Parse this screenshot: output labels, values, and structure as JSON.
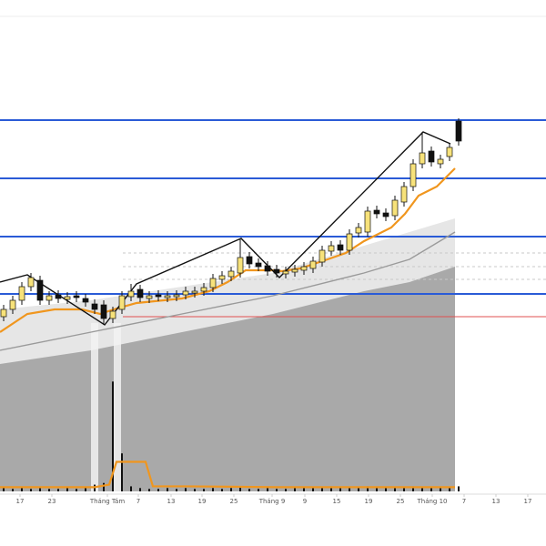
{
  "chart_data": {
    "type": "candlestick",
    "xlim": [
      -0.4,
      59.6
    ],
    "ylim": [
      0,
      540
    ],
    "xticks": [
      {
        "value": 1.8,
        "label": "17"
      },
      {
        "value": 5.3,
        "label": "23"
      },
      {
        "value": 11.4,
        "label": "Tháng Tám"
      },
      {
        "value": 14.8,
        "label": "7"
      },
      {
        "value": 18.4,
        "label": "13"
      },
      {
        "value": 21.8,
        "label": "19"
      },
      {
        "value": 25.3,
        "label": "25"
      },
      {
        "value": 29.5,
        "label": "Tháng 9"
      },
      {
        "value": 33.1,
        "label": "9"
      },
      {
        "value": 36.6,
        "label": "15"
      },
      {
        "value": 40.1,
        "label": "19"
      },
      {
        "value": 43.6,
        "label": "25"
      },
      {
        "value": 47.1,
        "label": "Tháng 10"
      },
      {
        "value": 50.6,
        "label": "7"
      },
      {
        "value": 54.1,
        "label": "13"
      },
      {
        "value": 57.6,
        "label": "17"
      }
    ],
    "x": [
      0,
      1,
      2,
      3,
      4,
      5,
      6,
      7,
      8,
      9,
      10,
      11,
      12,
      13,
      14,
      15,
      16,
      17,
      18,
      19,
      20,
      21,
      22,
      23,
      24,
      25,
      26,
      27,
      28,
      29,
      30,
      31,
      32,
      33,
      34,
      35,
      36,
      37,
      38,
      39,
      40,
      41,
      42,
      43,
      44,
      45,
      46,
      47,
      48,
      49,
      50
    ],
    "open": [
      192,
      200,
      210,
      225,
      232,
      210,
      216,
      211,
      215,
      212,
      206,
      205,
      190,
      200,
      214,
      222,
      212,
      216,
      213,
      214,
      216,
      218,
      220,
      224,
      233,
      236,
      240,
      258,
      251,
      248,
      244,
      239,
      241,
      243,
      245,
      252,
      264,
      271,
      265,
      284,
      285,
      309,
      306,
      303,
      318,
      335,
      360,
      374,
      360,
      368,
      407
    ],
    "high": [
      205,
      215,
      230,
      240,
      237,
      220,
      221,
      219,
      220,
      217,
      211,
      210,
      203,
      220,
      228,
      227,
      220,
      221,
      220,
      221,
      225,
      225,
      229,
      239,
      242,
      247,
      278,
      263,
      256,
      253,
      249,
      247,
      249,
      252,
      258,
      270,
      275,
      276,
      288,
      295,
      313,
      314,
      311,
      325,
      340,
      365,
      395,
      379,
      370,
      383,
      410
    ],
    "low": [
      187,
      195,
      205,
      220,
      205,
      205,
      207,
      206,
      208,
      203,
      195,
      183,
      185,
      195,
      209,
      208,
      207,
      209,
      208,
      209,
      211,
      213,
      215,
      219,
      228,
      231,
      235,
      245,
      242,
      237,
      235,
      234,
      236,
      238,
      240,
      247,
      259,
      260,
      260,
      279,
      280,
      300,
      297,
      298,
      313,
      330,
      355,
      357,
      355,
      363,
      380
    ],
    "close": [
      200,
      210,
      225,
      235,
      210,
      215,
      212,
      214,
      213,
      208,
      200,
      190,
      198,
      215,
      220,
      213,
      215,
      214,
      215,
      216,
      220,
      220,
      224,
      234,
      237,
      242,
      257,
      250,
      247,
      242,
      240,
      242,
      244,
      247,
      253,
      265,
      270,
      265,
      283,
      290,
      308,
      305,
      302,
      320,
      335,
      360,
      372,
      362,
      365,
      378,
      385
    ],
    "up_color": "#f7e27a",
    "down_color": "#111111",
    "areas": [
      {
        "color": "#e6e6e6",
        "x": [
          -0.4,
          9.6,
          19.6,
          29.6,
          39.6,
          44.6,
          49.6
        ],
        "values": [
          200,
          210,
          225,
          240,
          270,
          285,
          300
        ]
      },
      {
        "color": "#a9a9a9",
        "x": [
          -0.4,
          9.6,
          19.6,
          29.6,
          39.6,
          44.6,
          49.6
        ],
        "values": [
          140,
          155,
          175,
          195,
          220,
          230,
          247
        ]
      }
    ],
    "lines": [
      {
        "color": "#9a9a9a",
        "x": [
          -0.4,
          9.6,
          19.6,
          29.6,
          39.6,
          44.6,
          49.6
        ],
        "values": [
          155,
          175,
          195,
          215,
          240,
          255,
          285
        ]
      },
      {
        "color": "#f0961e",
        "x": [
          -0.4,
          2.6,
          5.6,
          8.6,
          10.6,
          12.1,
          14.6,
          19.6,
          22.6,
          24.6,
          26.6,
          29.6,
          30.6,
          32.6,
          35.6,
          37.6,
          39.6,
          42.6,
          44.1,
          45.6,
          47.6,
          49.6
        ],
        "values": [
          175,
          195,
          200,
          200,
          195,
          200,
          207,
          212,
          220,
          230,
          243,
          243,
          242,
          245,
          255,
          262,
          275,
          290,
          305,
          325,
          335,
          355
        ]
      },
      {
        "color": "#111111",
        "x": [
          -0.4,
          2.6,
          11.1,
          14.6,
          26.1,
          30.3,
          46.1,
          49.1
        ],
        "values": [
          230,
          238,
          183,
          228,
          278,
          235,
          395,
          382
        ]
      }
    ],
    "levels": [
      {
        "value": 408,
        "color": "#2a5bd7",
        "from": -0.4
      },
      {
        "value": 344,
        "color": "#2a5bd7",
        "from": -0.4
      },
      {
        "value": 280,
        "color": "#2a5bd7",
        "from": -0.4
      },
      {
        "value": 217,
        "color": "#2a5bd7",
        "from": -0.4
      },
      {
        "value": 192,
        "color": "#e05050",
        "from": 13.1
      },
      {
        "value": 262,
        "color": "#c8c8c8",
        "from": 13.1,
        "dashed": true
      },
      {
        "value": 247,
        "color": "#c8c8c8",
        "from": 13.1,
        "dashed": true
      },
      {
        "value": 233,
        "color": "#c8c8c8",
        "from": 13.1,
        "dashed": true
      }
    ],
    "highlights": [
      [
        9.6,
        10.4
      ],
      [
        12.1,
        12.9
      ]
    ],
    "highlight_top": 185,
    "volume": {
      "ylim": [
        0,
        140
      ],
      "color": "#111111",
      "values": [
        4,
        3,
        5,
        3,
        4,
        3,
        3,
        4,
        3,
        4,
        8,
        10,
        130,
        45,
        6,
        4,
        3,
        3,
        4,
        3,
        4,
        3,
        3,
        4,
        3,
        4,
        5,
        3,
        3,
        4,
        3,
        3,
        4,
        4,
        5,
        4,
        6,
        4,
        5,
        4,
        6,
        4,
        5,
        4,
        4,
        6,
        5,
        4,
        5,
        4,
        6
      ],
      "ma": {
        "color": "#f0961e",
        "x": [
          -0.4,
          10,
          11.6,
          12.4,
          15.6,
          16.4,
          20,
          30,
          40,
          49.6
        ],
        "values": [
          5,
          5,
          8,
          35,
          35,
          6,
          6,
          5,
          5,
          5
        ]
      }
    }
  }
}
